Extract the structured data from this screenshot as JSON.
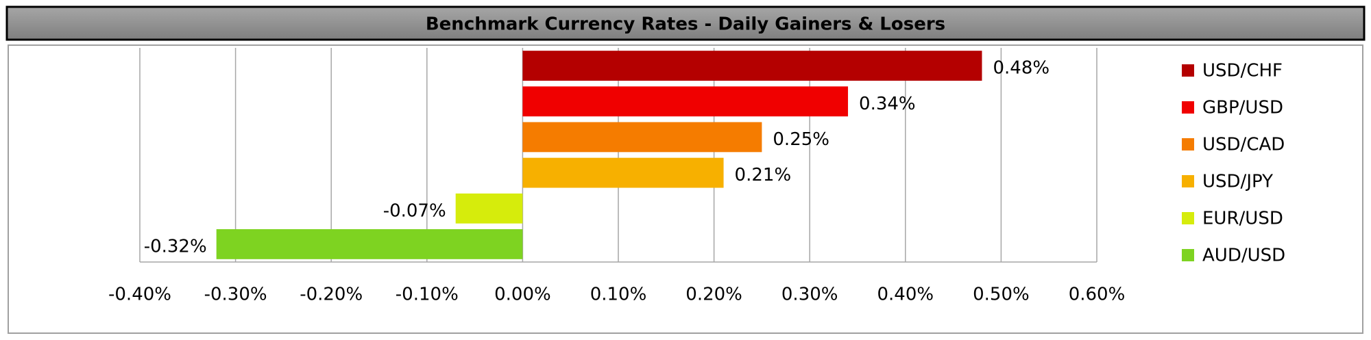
{
  "chart_data": {
    "type": "barh",
    "title": "Benchmark Currency Rates - Daily Gainers & Losers",
    "categories": [
      "USD/CHF",
      "GBP/USD",
      "USD/CAD",
      "USD/JPY",
      "EUR/USD",
      "AUD/USD"
    ],
    "values": [
      0.48,
      0.34,
      0.25,
      0.21,
      -0.07,
      -0.32
    ],
    "value_labels": [
      "0.48%",
      "0.34%",
      "0.25%",
      "0.21%",
      "-0.07%",
      "-0.32%"
    ],
    "colors": [
      "#b40000",
      "#f00000",
      "#f57c00",
      "#f7b000",
      "#d6ec0c",
      "#7ed321"
    ],
    "xlim": [
      -0.4,
      0.6
    ],
    "xticks": [
      {
        "value": -0.4,
        "label": "-0.40%"
      },
      {
        "value": -0.3,
        "label": "-0.30%"
      },
      {
        "value": -0.2,
        "label": "-0.20%"
      },
      {
        "value": -0.1,
        "label": "-0.10%"
      },
      {
        "value": 0,
        "label": "0.00%"
      },
      {
        "value": 0.1,
        "label": "0.10%"
      },
      {
        "value": 0.2,
        "label": "0.20%"
      },
      {
        "value": 0.3,
        "label": "0.30%"
      },
      {
        "value": 0.4,
        "label": "0.40%"
      },
      {
        "value": 0.5,
        "label": "0.50%"
      },
      {
        "value": 0.6,
        "label": "0.60%"
      }
    ],
    "grid": true,
    "legend": "right"
  }
}
